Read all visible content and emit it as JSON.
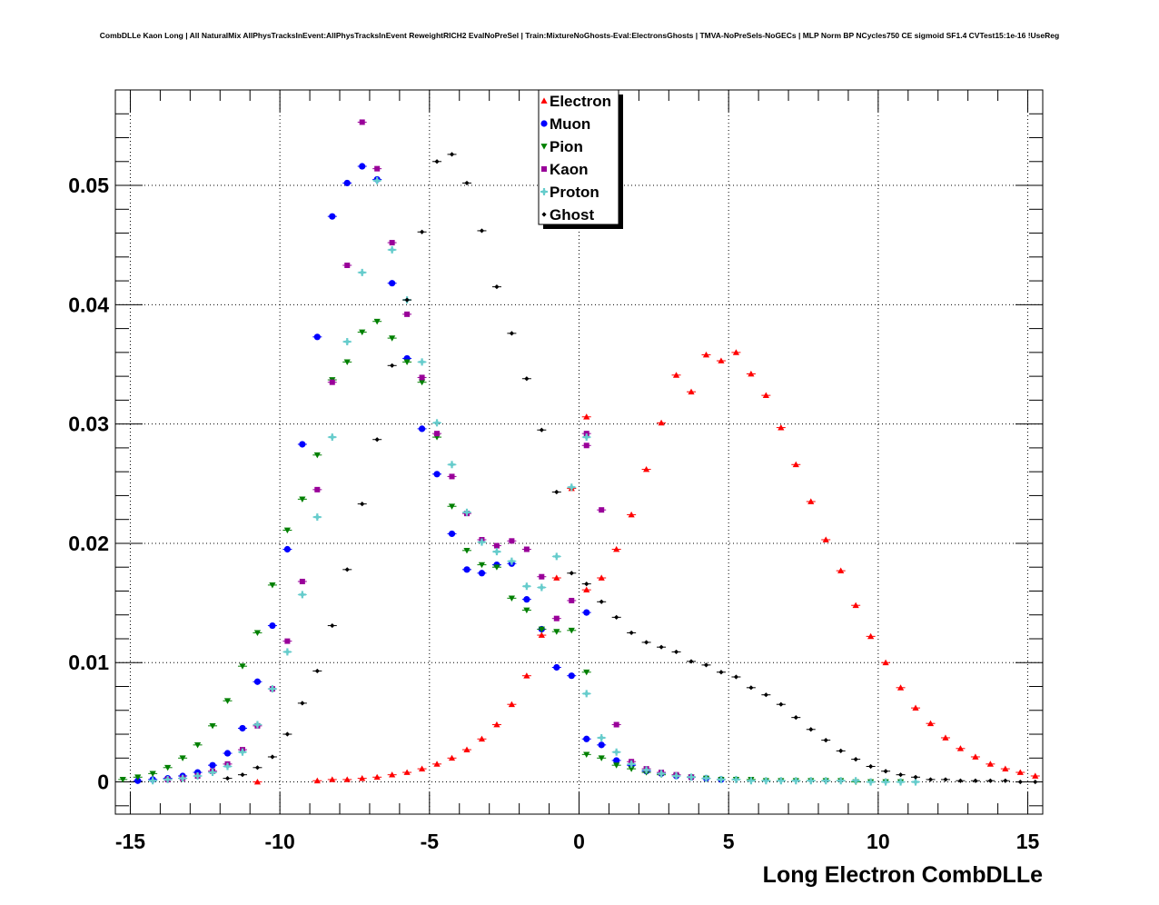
{
  "chart_data": {
    "type": "scatter",
    "title": "CombDLLe Kaon Long | All NaturalMix AllPhysTracksInEvent:AllPhysTracksInEvent ReweightRICH2 EvalNoPreSel | Train:MixtureNoGhosts-Eval:ElectronsGhosts | TMVA-NoPreSels-NoGECs | MLP Norm BP NCycles750 CE sigmoid SF1.4 CVTest15:1e-16 !UseReg",
    "xlabel": "Long Electron CombDLLe",
    "ylabel": "",
    "xlim": [
      -15.5,
      15.5
    ],
    "ylim": [
      -0.0027,
      0.058
    ],
    "x_ticks": [
      -15,
      -10,
      -5,
      0,
      5,
      10,
      15
    ],
    "x_tick_labels": [
      "-15",
      "-10",
      "-5",
      "0",
      "5",
      "10",
      "15"
    ],
    "y_ticks": [
      0,
      0.01,
      0.02,
      0.03,
      0.04,
      0.05
    ],
    "y_tick_labels": [
      "0",
      "0.01",
      "0.02",
      "0.03",
      "0.04",
      "0.05"
    ],
    "grid": true,
    "legend_position": "top-center",
    "series": [
      {
        "name": "Electron",
        "color": "#ff0000",
        "marker": "triangle-up",
        "x": [
          -10.75,
          -8.75,
          -8.25,
          -7.75,
          -7.25,
          -6.75,
          -6.25,
          -5.75,
          -5.25,
          -4.75,
          -4.25,
          -3.75,
          -3.25,
          -2.75,
          -2.25,
          -1.75,
          -1.25,
          -0.75,
          -0.25,
          0.25,
          0.25,
          0.75,
          1.25,
          1.75,
          2.25,
          2.75,
          3.25,
          3.75,
          4.25,
          4.75,
          5.25,
          5.75,
          6.25,
          6.75,
          7.25,
          7.75,
          8.25,
          8.75,
          9.25,
          9.75,
          10.25,
          10.75,
          11.25,
          11.75,
          12.25,
          12.75,
          13.25,
          13.75,
          14.25,
          14.75,
          15.25
        ],
        "y": [
          0.0,
          0.0001,
          0.0002,
          0.0002,
          0.0003,
          0.0004,
          0.0006,
          0.0008,
          0.0011,
          0.0015,
          0.002,
          0.0027,
          0.0036,
          0.0048,
          0.0065,
          0.0089,
          0.0123,
          0.0171,
          0.0246,
          0.0306,
          0.0161,
          0.0171,
          0.0195,
          0.0224,
          0.0262,
          0.0301,
          0.0341,
          0.0327,
          0.0358,
          0.0353,
          0.036,
          0.0342,
          0.0324,
          0.0297,
          0.0266,
          0.0235,
          0.0203,
          0.0177,
          0.0148,
          0.0122,
          0.01,
          0.0079,
          0.0062,
          0.0049,
          0.0037,
          0.0028,
          0.0021,
          0.0015,
          0.0011,
          0.0008,
          0.0005
        ]
      },
      {
        "name": "Muon",
        "color": "#0000ff",
        "marker": "circle",
        "x": [
          -14.75,
          -14.25,
          -13.75,
          -13.25,
          -12.75,
          -12.25,
          -11.75,
          -11.25,
          -10.75,
          -10.25,
          -9.75,
          -9.25,
          -8.75,
          -8.25,
          -7.75,
          -7.25,
          -6.75,
          -6.25,
          -5.75,
          -5.25,
          -4.75,
          -4.25,
          -3.75,
          -3.25,
          -2.75,
          -2.25,
          -1.75,
          -1.25,
          -0.75,
          -0.25,
          0.25,
          0.25,
          0.75,
          1.25,
          1.75,
          2.25,
          2.75,
          3.25,
          3.75,
          4.25,
          4.75
        ],
        "y": [
          0.0001,
          0.0002,
          0.0003,
          0.0005,
          0.0008,
          0.0014,
          0.0024,
          0.0045,
          0.0084,
          0.0131,
          0.0195,
          0.0283,
          0.0373,
          0.0474,
          0.0502,
          0.0516,
          0.0505,
          0.0418,
          0.0355,
          0.0296,
          0.0258,
          0.0208,
          0.0178,
          0.0175,
          0.0182,
          0.0183,
          0.0153,
          0.0128,
          0.0096,
          0.0089,
          0.0142,
          0.0036,
          0.0031,
          0.0018,
          0.0014,
          0.0009,
          0.0007,
          0.0005,
          0.0004,
          0.0003,
          0.0002
        ]
      },
      {
        "name": "Pion",
        "color": "#008000",
        "marker": "triangle-down",
        "x": [
          -15.25,
          -14.75,
          -14.25,
          -13.75,
          -13.25,
          -12.75,
          -12.25,
          -11.75,
          -11.25,
          -10.75,
          -10.25,
          -9.75,
          -9.25,
          -8.75,
          -8.25,
          -7.75,
          -7.25,
          -6.75,
          -6.25,
          -5.75,
          -5.25,
          -4.75,
          -4.25,
          -3.75,
          -3.25,
          -2.75,
          -2.25,
          -1.75,
          -1.25,
          -0.75,
          -0.25,
          0.25,
          0.25,
          0.75,
          1.25,
          1.75,
          2.25,
          2.75,
          3.25,
          3.75,
          4.25,
          4.75,
          5.25,
          5.75,
          6.25,
          6.75,
          7.25,
          7.75,
          8.25,
          8.75,
          9.25,
          9.75,
          10.25,
          10.75
        ],
        "y": [
          0.0002,
          0.0004,
          0.0007,
          0.0012,
          0.002,
          0.0031,
          0.0047,
          0.0068,
          0.0097,
          0.0125,
          0.0165,
          0.0211,
          0.0237,
          0.0274,
          0.0337,
          0.0352,
          0.0377,
          0.0386,
          0.0372,
          0.0352,
          0.0335,
          0.0289,
          0.0231,
          0.0194,
          0.0182,
          0.018,
          0.0154,
          0.0144,
          0.0128,
          0.0126,
          0.0127,
          0.0092,
          0.0023,
          0.002,
          0.0014,
          0.0011,
          0.0008,
          0.0006,
          0.0005,
          0.0004,
          0.0003,
          0.0002,
          0.0002,
          0.0002,
          0.0001,
          0.0001,
          0.0001,
          0.0001,
          0.0001,
          0.0001,
          0.0,
          0.0,
          0.0,
          0.0
        ]
      },
      {
        "name": "Kaon",
        "color": "#990099",
        "marker": "square",
        "x": [
          -13.75,
          -13.25,
          -12.75,
          -12.25,
          -11.75,
          -11.25,
          -10.75,
          -10.25,
          -9.75,
          -9.25,
          -8.75,
          -8.25,
          -7.75,
          -7.25,
          -6.75,
          -6.25,
          -5.75,
          -5.25,
          -4.75,
          -4.25,
          -3.75,
          -3.25,
          -2.75,
          -2.25,
          -1.75,
          -1.25,
          -0.75,
          -0.25,
          0.25,
          0.25,
          0.75,
          1.25,
          1.75,
          2.25,
          2.75,
          3.25,
          3.75
        ],
        "y": [
          0.0002,
          0.0003,
          0.0005,
          0.0009,
          0.0015,
          0.0027,
          0.0047,
          0.0078,
          0.0118,
          0.0168,
          0.0245,
          0.0335,
          0.0433,
          0.0553,
          0.0514,
          0.0452,
          0.0392,
          0.0339,
          0.0292,
          0.0256,
          0.0225,
          0.0203,
          0.0198,
          0.0202,
          0.0195,
          0.0172,
          0.0137,
          0.0152,
          0.0292,
          0.0282,
          0.0228,
          0.0048,
          0.0017,
          0.0011,
          0.0008,
          0.0006,
          0.0004
        ]
      },
      {
        "name": "Proton",
        "color": "#66cccc",
        "marker": "star",
        "x": [
          -14.25,
          -13.75,
          -13.25,
          -12.75,
          -12.25,
          -11.75,
          -11.25,
          -10.75,
          -10.25,
          -9.75,
          -9.25,
          -8.75,
          -8.25,
          -7.75,
          -7.25,
          -6.75,
          -6.25,
          -5.75,
          -5.25,
          -4.75,
          -4.25,
          -3.75,
          -3.25,
          -2.75,
          -2.25,
          -1.75,
          -1.25,
          -0.75,
          -0.25,
          0.25,
          0.25,
          0.75,
          1.25,
          1.75,
          2.25,
          2.75,
          3.25,
          3.75,
          4.25,
          4.75,
          5.25,
          5.75,
          6.25,
          6.75,
          7.25,
          7.75,
          8.25,
          8.75,
          9.25,
          9.75,
          10.25,
          10.75,
          11.25
        ],
        "y": [
          0.0001,
          0.0002,
          0.0003,
          0.0005,
          0.0008,
          0.0013,
          0.0025,
          0.0048,
          0.0078,
          0.0109,
          0.0157,
          0.0222,
          0.0289,
          0.0369,
          0.0427,
          0.0504,
          0.0446,
          0.0404,
          0.0352,
          0.0301,
          0.0266,
          0.0226,
          0.0201,
          0.0193,
          0.0185,
          0.0164,
          0.0163,
          0.0189,
          0.0247,
          0.0289,
          0.0074,
          0.0037,
          0.0025,
          0.0015,
          0.001,
          0.0007,
          0.0005,
          0.0004,
          0.0003,
          0.0002,
          0.0002,
          0.0001,
          0.0001,
          0.0001,
          0.0001,
          0.0001,
          0.0001,
          0.0001,
          0.0001,
          0.0,
          0.0,
          0.0,
          0.0
        ]
      },
      {
        "name": "Ghost",
        "color": "#000000",
        "marker": "diamond",
        "x": [
          -11.75,
          -11.25,
          -10.75,
          -10.25,
          -9.75,
          -9.25,
          -8.75,
          -8.25,
          -7.75,
          -7.25,
          -6.75,
          -6.25,
          -5.75,
          -5.25,
          -4.75,
          -4.25,
          -3.75,
          -3.25,
          -2.75,
          -2.25,
          -1.75,
          -1.25,
          -0.75,
          -0.25,
          0.25,
          0.75,
          1.25,
          1.75,
          2.25,
          2.75,
          3.25,
          3.75,
          4.25,
          4.75,
          5.25,
          5.75,
          6.25,
          6.75,
          7.25,
          7.75,
          8.25,
          8.75,
          9.25,
          9.75,
          10.25,
          10.75,
          11.25,
          11.75,
          12.25,
          12.75,
          13.25,
          13.75,
          14.25,
          14.75,
          15.25
        ],
        "y": [
          0.0003,
          0.0006,
          0.0012,
          0.0021,
          0.004,
          0.0066,
          0.0093,
          0.0131,
          0.0178,
          0.0233,
          0.0287,
          0.0349,
          0.0404,
          0.0461,
          0.052,
          0.0526,
          0.0502,
          0.0462,
          0.0415,
          0.0376,
          0.0338,
          0.0295,
          0.0243,
          0.0175,
          0.0166,
          0.0151,
          0.0138,
          0.0125,
          0.0117,
          0.0113,
          0.0109,
          0.0101,
          0.0098,
          0.0092,
          0.0088,
          0.0079,
          0.0073,
          0.0065,
          0.0054,
          0.0044,
          0.0035,
          0.0026,
          0.0019,
          0.0013,
          0.0009,
          0.0006,
          0.0004,
          0.0002,
          0.0002,
          0.0001,
          0.0001,
          0.0001,
          0.0001,
          0.0,
          0.0
        ]
      }
    ]
  }
}
